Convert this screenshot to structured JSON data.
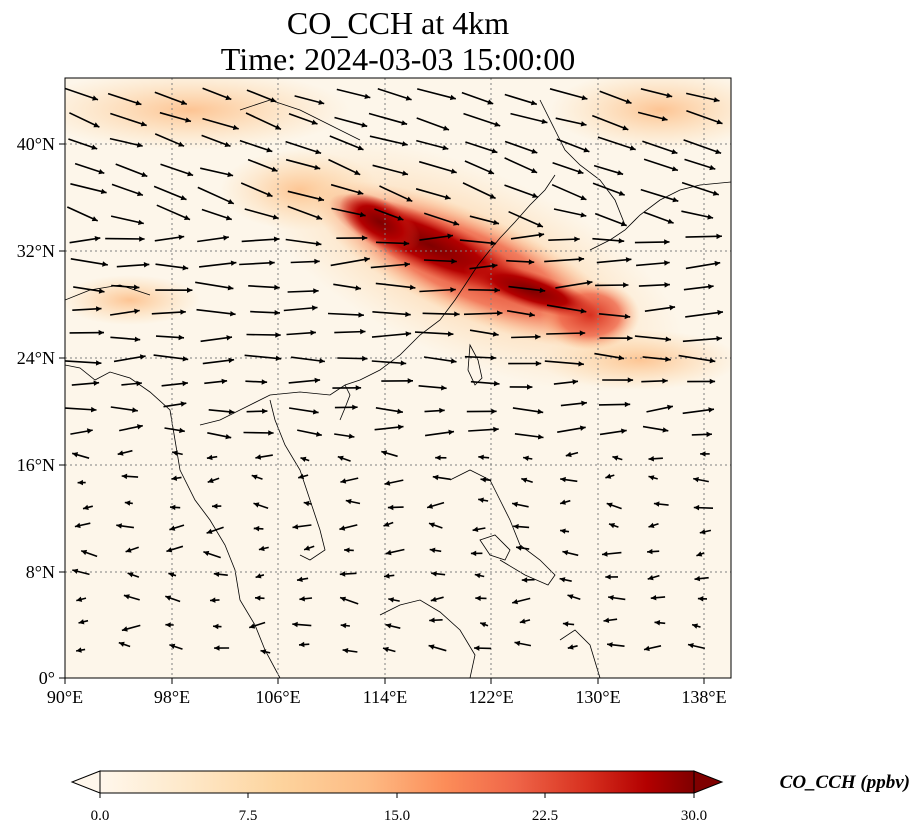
{
  "title": {
    "line1": "CO_CCH at 4km",
    "line2": "Time: 2024-03-03 15:00:00"
  },
  "map": {
    "lon_range": [
      90,
      140
    ],
    "lat_range": [
      0,
      45
    ],
    "x_tick_labels": [
      "90°E",
      "98°E",
      "106°E",
      "114°E",
      "122°E",
      "130°E",
      "138°E"
    ],
    "y_tick_labels": [
      "0°",
      "8°N",
      "16°N",
      "24°N",
      "32°N",
      "40°N"
    ],
    "gridlines": true,
    "plume": "high CO concentration band along roughly 111°E–131°E, 26°N–36°N",
    "wind_vectors": "westerly flow north of ~20°N, easterly trades south of ~15°N",
    "colors": {
      "background": "#fdf6ea",
      "plume_core": "#800000",
      "plume_mid": "#d7301f",
      "plume_edge": "#fdbb84",
      "coastline": "#000000",
      "arrows": "#000000"
    }
  },
  "colorbar": {
    "colormap": "OrRd",
    "range": [
      0.0,
      30.0
    ],
    "tick_labels": [
      "0.0",
      "7.5",
      "15.0",
      "22.5",
      "30.0"
    ],
    "label": "CO_CCH (ppbv)",
    "extend": "both"
  }
}
